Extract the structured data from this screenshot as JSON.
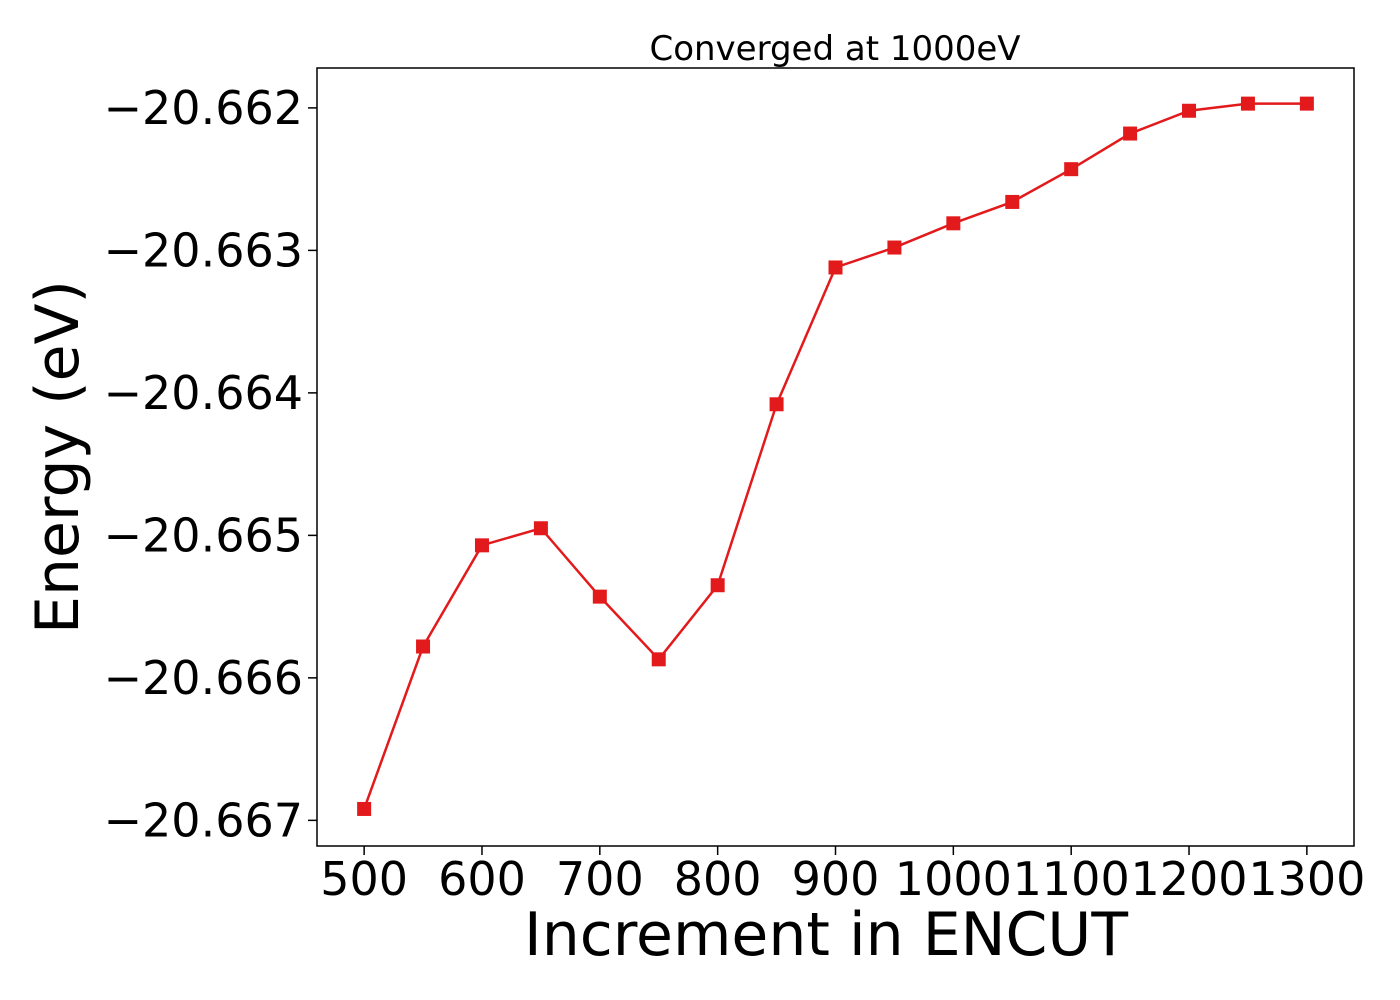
{
  "chart_data": {
    "type": "line",
    "title": "Converged at 1000eV",
    "xlabel": "Increment in ENCUT",
    "ylabel": "Energy (eV)",
    "x": [
      500,
      550,
      600,
      650,
      700,
      750,
      800,
      850,
      900,
      950,
      1000,
      1050,
      1100,
      1150,
      1200,
      1250,
      1300
    ],
    "series": [
      {
        "values": [
          -20.66692,
          -20.66578,
          -20.66507,
          -20.66495,
          -20.66543,
          -20.66587,
          -20.66535,
          -20.66408,
          -20.66312,
          -20.66298,
          -20.66281,
          -20.66266,
          -20.66243,
          -20.66218,
          -20.66202,
          -20.66197,
          -20.66197
        ],
        "color": "#e31a1c",
        "marker": "square"
      }
    ],
    "xticks": [
      500,
      600,
      700,
      800,
      900,
      1000,
      1100,
      1200,
      1300
    ],
    "xtick_labels": [
      "500",
      "600",
      "700",
      "800",
      "900",
      "1000",
      "1100",
      "1200",
      "1300"
    ],
    "yticks": [
      -20.667,
      -20.666,
      -20.665,
      -20.664,
      -20.663,
      -20.662
    ],
    "ytick_labels": [
      "−20.667",
      "−20.666",
      "−20.665",
      "−20.664",
      "−20.663",
      "−20.662"
    ],
    "xlim": [
      460,
      1340
    ],
    "ylim": [
      -20.66718,
      -20.66172
    ],
    "grid": false,
    "legend": "none"
  }
}
